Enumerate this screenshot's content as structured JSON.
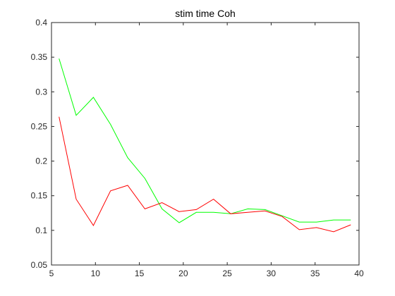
{
  "chart_data": {
    "type": "line",
    "title": "stim time Coh",
    "xlabel": "",
    "ylabel": "",
    "xlim": [
      5,
      40
    ],
    "ylim": [
      0.05,
      0.4
    ],
    "xticks": [
      5,
      10,
      15,
      20,
      25,
      30,
      35,
      40
    ],
    "xtick_labels": [
      "5",
      "10",
      "15",
      "20",
      "25",
      "30",
      "35",
      "40"
    ],
    "yticks": [
      0.05,
      0.1,
      0.15,
      0.2,
      0.25,
      0.3,
      0.35,
      0.4
    ],
    "ytick_labels": [
      "0.05",
      "0.1",
      "0.15",
      "0.2",
      "0.25",
      "0.3",
      "0.35",
      "0.4"
    ],
    "grid": false,
    "x": [
      5.86,
      7.81,
      9.77,
      11.72,
      13.67,
      15.63,
      17.58,
      19.53,
      21.48,
      23.44,
      25.39,
      27.34,
      29.3,
      31.25,
      33.2,
      35.16,
      37.11,
      39.06
    ],
    "series": [
      {
        "color": "#00ff00",
        "values": [
          0.348,
          0.266,
          0.292,
          0.253,
          0.205,
          0.175,
          0.131,
          0.111,
          0.126,
          0.126,
          0.124,
          0.131,
          0.13,
          0.121,
          0.112,
          0.112,
          0.115,
          0.115
        ]
      },
      {
        "color": "#ff0000",
        "values": [
          0.264,
          0.145,
          0.107,
          0.157,
          0.165,
          0.131,
          0.14,
          0.127,
          0.13,
          0.145,
          0.124,
          0.126,
          0.128,
          0.12,
          0.101,
          0.104,
          0.098,
          0.108
        ]
      }
    ]
  }
}
